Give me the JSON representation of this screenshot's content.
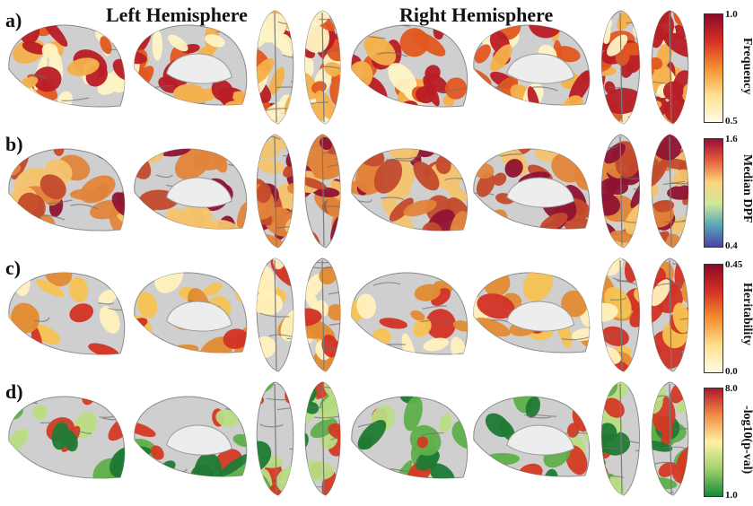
{
  "headers": {
    "left": "Left Hemisphere",
    "right": "Right Hemisphere"
  },
  "panels": [
    {
      "label": "a)",
      "colorbar": {
        "title": "Frequency",
        "max": "1.0",
        "min": "0.5"
      }
    },
    {
      "label": "b)",
      "colorbar": {
        "title": "Median DPF",
        "max": "1.6",
        "min": "0.4"
      }
    },
    {
      "label": "c)",
      "colorbar": {
        "title": "Heritability",
        "max": "0.45",
        "min": "0.0"
      }
    },
    {
      "label": "d)",
      "colorbar": {
        "title": "-log10(p-val)",
        "max": "8.0",
        "min": "1.0"
      }
    }
  ],
  "colors": {
    "cortex": "#cfcfcf",
    "a": [
      "#fdf3c4",
      "#f4b04a",
      "#e2571f",
      "#b81c25"
    ],
    "b": [
      "#c44a2c",
      "#e2843a",
      "#f4c36b",
      "#8f1232"
    ],
    "c": [
      "#f6c253",
      "#e38b33",
      "#d23224",
      "#fff1bd"
    ],
    "d": [
      "#1f7a33",
      "#5fae4a",
      "#b9dd84",
      "#d43a24"
    ]
  },
  "colormaps": {
    "a": [
      "#8b0a26",
      "#d63025",
      "#f5902f",
      "#ffe08f",
      "#fffbe5"
    ],
    "b": [
      "#9b0d3a",
      "#e75c3a",
      "#fbd47d",
      "#cfe89b",
      "#58a6b7",
      "#4b43a5"
    ],
    "c": [
      "#8b0a26",
      "#d63025",
      "#f5902f",
      "#ffe08f",
      "#fffbe5"
    ],
    "d": [
      "#b0162c",
      "#f48d45",
      "#fff2a5",
      "#9fd16c",
      "#178a3c"
    ]
  }
}
